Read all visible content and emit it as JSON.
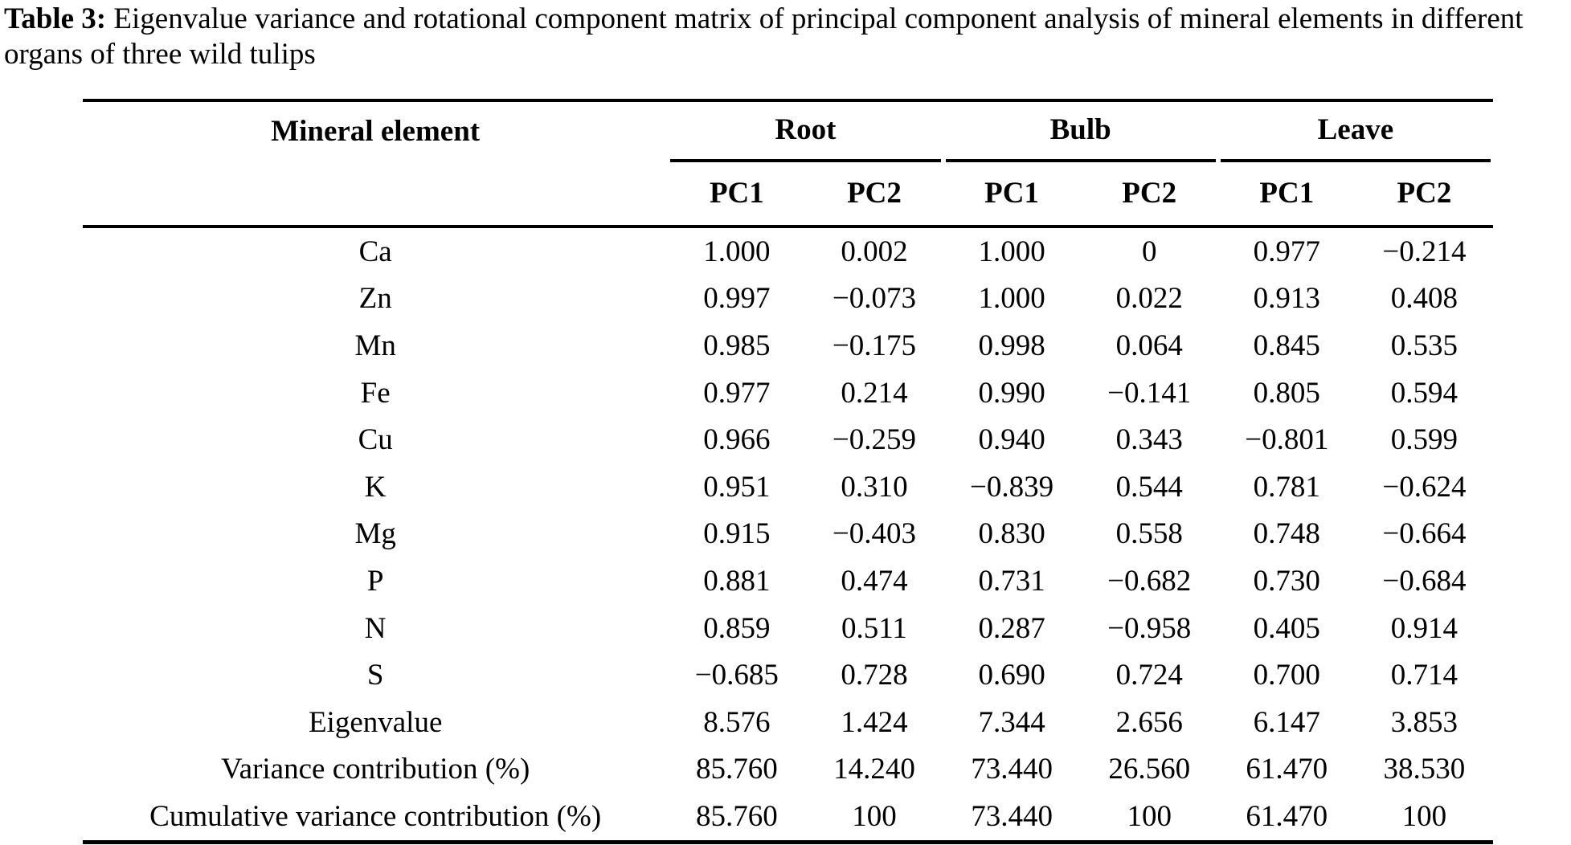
{
  "page": {
    "background": "#ffffff",
    "text_color": "#000000"
  },
  "caption": {
    "label": "Table 3:",
    "text": " Eigenvalue variance and rotational component matrix of principal component analysis of mineral elements in different organs of three wild tulips"
  },
  "table": {
    "col1_header": "Mineral element",
    "groups": [
      {
        "label": "Root",
        "sub": [
          "PC1",
          "PC2"
        ]
      },
      {
        "label": "Bulb",
        "sub": [
          "PC1",
          "PC2"
        ]
      },
      {
        "label": "Leave",
        "sub": [
          "PC1",
          "PC2"
        ]
      }
    ],
    "rows": [
      {
        "label": "Ca",
        "values": [
          "1.000",
          "0.002",
          "1.000",
          "0",
          "0.977",
          "−0.214"
        ]
      },
      {
        "label": "Zn",
        "values": [
          "0.997",
          "−0.073",
          "1.000",
          "0.022",
          "0.913",
          "0.408"
        ]
      },
      {
        "label": "Mn",
        "values": [
          "0.985",
          "−0.175",
          "0.998",
          "0.064",
          "0.845",
          "0.535"
        ]
      },
      {
        "label": "Fe",
        "values": [
          "0.977",
          "0.214",
          "0.990",
          "−0.141",
          "0.805",
          "0.594"
        ]
      },
      {
        "label": "Cu",
        "values": [
          "0.966",
          "−0.259",
          "0.940",
          "0.343",
          "−0.801",
          "0.599"
        ]
      },
      {
        "label": "K",
        "values": [
          "0.951",
          "0.310",
          "−0.839",
          "0.544",
          "0.781",
          "−0.624"
        ]
      },
      {
        "label": "Mg",
        "values": [
          "0.915",
          "−0.403",
          "0.830",
          "0.558",
          "0.748",
          "−0.664"
        ]
      },
      {
        "label": "P",
        "values": [
          "0.881",
          "0.474",
          "0.731",
          "−0.682",
          "0.730",
          "−0.684"
        ]
      },
      {
        "label": "N",
        "values": [
          "0.859",
          "0.511",
          "0.287",
          "−0.958",
          "0.405",
          "0.914"
        ]
      },
      {
        "label": "S",
        "values": [
          "−0.685",
          "0.728",
          "0.690",
          "0.724",
          "0.700",
          "0.714"
        ]
      },
      {
        "label": "Eigenvalue",
        "values": [
          "8.576",
          "1.424",
          "7.344",
          "2.656",
          "6.147",
          "3.853"
        ]
      },
      {
        "label": "Variance contribution (%)",
        "values": [
          "85.760",
          "14.240",
          "73.440",
          "26.560",
          "61.470",
          "38.530"
        ]
      },
      {
        "label": "Cumulative variance contribution (%)",
        "values": [
          "85.760",
          "100",
          "73.440",
          "100",
          "61.470",
          "100"
        ]
      }
    ]
  }
}
